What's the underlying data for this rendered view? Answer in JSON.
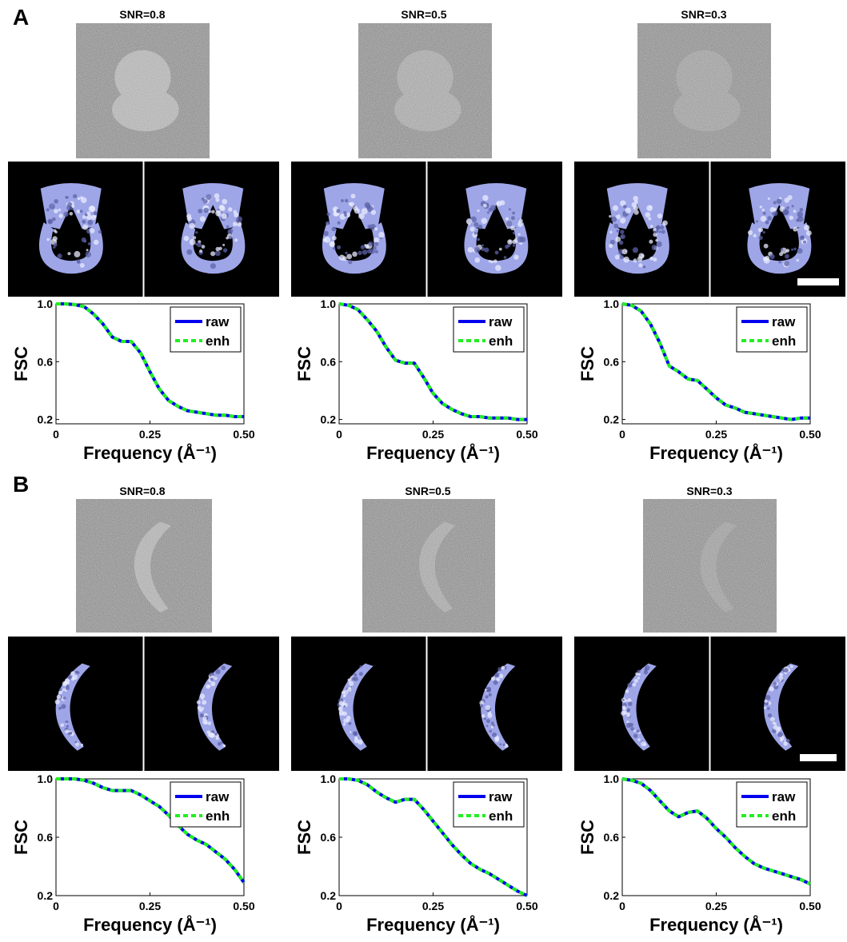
{
  "panels": [
    {
      "label": "A",
      "columns": [
        {
          "snr_title": "SNR=0.8"
        },
        {
          "snr_title": "SNR=0.5"
        },
        {
          "snr_title": "SNR=0.3"
        }
      ]
    },
    {
      "label": "B",
      "columns": [
        {
          "snr_title": "SNR=0.8"
        },
        {
          "snr_title": "SNR=0.5"
        },
        {
          "snr_title": "SNR=0.3"
        }
      ]
    }
  ],
  "colors": {
    "raw": "#0000ee",
    "enh": "#22ee22",
    "surface": "#9ea6e8",
    "noise_bg": "#8a8a8a",
    "recon_bg": "#000000"
  },
  "chart_data": [
    {
      "type": "line",
      "panel": "A",
      "title": "SNR=0.8",
      "xlabel": "Frequency (Å⁻¹)",
      "ylabel": "FSC",
      "xlim": [
        0,
        0.5
      ],
      "ylim": [
        0.17,
        1.0
      ],
      "xticks": [
        "0",
        "0.25",
        "0.50"
      ],
      "yticks": [
        "0.2",
        "0.6",
        "1.0"
      ],
      "legend": "top-right",
      "x": [
        0,
        0.025,
        0.05,
        0.075,
        0.1,
        0.125,
        0.15,
        0.175,
        0.2,
        0.225,
        0.25,
        0.275,
        0.3,
        0.325,
        0.35,
        0.375,
        0.4,
        0.425,
        0.45,
        0.475,
        0.5
      ],
      "series": [
        {
          "name": "raw",
          "values": [
            1.0,
            1.0,
            0.995,
            0.98,
            0.93,
            0.86,
            0.77,
            0.74,
            0.74,
            0.66,
            0.53,
            0.41,
            0.33,
            0.29,
            0.26,
            0.25,
            0.24,
            0.23,
            0.23,
            0.22,
            0.22
          ]
        },
        {
          "name": "enh",
          "values": [
            1.0,
            1.0,
            0.995,
            0.98,
            0.93,
            0.86,
            0.77,
            0.74,
            0.74,
            0.66,
            0.53,
            0.41,
            0.33,
            0.29,
            0.26,
            0.25,
            0.24,
            0.23,
            0.23,
            0.22,
            0.22
          ]
        }
      ]
    },
    {
      "type": "line",
      "panel": "A",
      "title": "SNR=0.5",
      "xlabel": "Frequency (Å⁻¹)",
      "ylabel": "FSC",
      "xlim": [
        0,
        0.5
      ],
      "ylim": [
        0.17,
        1.0
      ],
      "xticks": [
        "0",
        "0.25",
        "0.50"
      ],
      "yticks": [
        "0.2",
        "0.6",
        "1.0"
      ],
      "legend": "top-right",
      "x": [
        0,
        0.025,
        0.05,
        0.075,
        0.1,
        0.125,
        0.15,
        0.175,
        0.2,
        0.225,
        0.25,
        0.275,
        0.3,
        0.325,
        0.35,
        0.375,
        0.4,
        0.425,
        0.45,
        0.475,
        0.5
      ],
      "series": [
        {
          "name": "raw",
          "values": [
            1.0,
            0.99,
            0.96,
            0.89,
            0.81,
            0.7,
            0.61,
            0.59,
            0.59,
            0.49,
            0.38,
            0.31,
            0.27,
            0.24,
            0.22,
            0.22,
            0.21,
            0.21,
            0.21,
            0.2,
            0.2
          ]
        },
        {
          "name": "enh",
          "values": [
            1.0,
            0.99,
            0.96,
            0.89,
            0.81,
            0.7,
            0.61,
            0.59,
            0.59,
            0.49,
            0.38,
            0.31,
            0.27,
            0.24,
            0.22,
            0.22,
            0.21,
            0.21,
            0.21,
            0.2,
            0.2
          ]
        }
      ]
    },
    {
      "type": "line",
      "panel": "A",
      "title": "SNR=0.3",
      "xlabel": "Frequency (Å⁻¹)",
      "ylabel": "FSC",
      "xlim": [
        0,
        0.5
      ],
      "ylim": [
        0.17,
        1.0
      ],
      "xticks": [
        "0",
        "0.25",
        "0.50"
      ],
      "yticks": [
        "0.2",
        "0.6",
        "1.0"
      ],
      "legend": "top-right",
      "x": [
        0,
        0.025,
        0.05,
        0.075,
        0.1,
        0.125,
        0.15,
        0.175,
        0.2,
        0.225,
        0.25,
        0.275,
        0.3,
        0.325,
        0.35,
        0.375,
        0.4,
        0.425,
        0.45,
        0.475,
        0.5
      ],
      "series": [
        {
          "name": "raw",
          "values": [
            1.0,
            0.99,
            0.95,
            0.86,
            0.73,
            0.57,
            0.53,
            0.48,
            0.47,
            0.41,
            0.35,
            0.3,
            0.28,
            0.25,
            0.24,
            0.23,
            0.22,
            0.21,
            0.2,
            0.21,
            0.21
          ]
        },
        {
          "name": "enh",
          "values": [
            1.0,
            0.99,
            0.95,
            0.86,
            0.73,
            0.57,
            0.53,
            0.48,
            0.47,
            0.41,
            0.35,
            0.3,
            0.28,
            0.25,
            0.24,
            0.23,
            0.22,
            0.21,
            0.2,
            0.21,
            0.21
          ]
        }
      ]
    },
    {
      "type": "line",
      "panel": "B",
      "title": "SNR=0.8",
      "xlabel": "Frequency (Å⁻¹)",
      "ylabel": "FSC",
      "xlim": [
        0,
        0.5
      ],
      "ylim": [
        0.2,
        1.0
      ],
      "xticks": [
        "0",
        "0.25",
        "0.50"
      ],
      "yticks": [
        "0.2",
        "0.6",
        "1.0"
      ],
      "legend": "top-right",
      "x": [
        0,
        0.025,
        0.05,
        0.075,
        0.1,
        0.125,
        0.15,
        0.175,
        0.2,
        0.225,
        0.25,
        0.275,
        0.3,
        0.325,
        0.35,
        0.375,
        0.4,
        0.425,
        0.45,
        0.475,
        0.5
      ],
      "series": [
        {
          "name": "raw",
          "values": [
            1.0,
            1.0,
            1.0,
            0.99,
            0.97,
            0.94,
            0.92,
            0.92,
            0.92,
            0.89,
            0.85,
            0.81,
            0.75,
            0.68,
            0.62,
            0.58,
            0.55,
            0.5,
            0.45,
            0.38,
            0.29
          ]
        },
        {
          "name": "enh",
          "values": [
            1.0,
            1.0,
            1.0,
            0.99,
            0.97,
            0.94,
            0.92,
            0.92,
            0.92,
            0.89,
            0.85,
            0.81,
            0.75,
            0.68,
            0.62,
            0.58,
            0.55,
            0.5,
            0.45,
            0.38,
            0.29
          ]
        }
      ]
    },
    {
      "type": "line",
      "panel": "B",
      "title": "SNR=0.5",
      "xlabel": "Frequency (Å⁻¹)",
      "ylabel": "FSC",
      "xlim": [
        0,
        0.5
      ],
      "ylim": [
        0.2,
        1.0
      ],
      "xticks": [
        "0",
        "0.25",
        "0.50"
      ],
      "yticks": [
        "0.2",
        "0.6",
        "1.0"
      ],
      "legend": "top-right",
      "x": [
        0,
        0.025,
        0.05,
        0.075,
        0.1,
        0.125,
        0.15,
        0.175,
        0.2,
        0.225,
        0.25,
        0.275,
        0.3,
        0.325,
        0.35,
        0.375,
        0.4,
        0.425,
        0.45,
        0.475,
        0.5
      ],
      "series": [
        {
          "name": "raw",
          "values": [
            1.0,
            1.0,
            0.99,
            0.96,
            0.91,
            0.87,
            0.84,
            0.86,
            0.86,
            0.79,
            0.71,
            0.63,
            0.55,
            0.48,
            0.42,
            0.38,
            0.35,
            0.31,
            0.27,
            0.23,
            0.2
          ]
        },
        {
          "name": "enh",
          "values": [
            1.0,
            1.0,
            0.99,
            0.96,
            0.91,
            0.87,
            0.84,
            0.86,
            0.86,
            0.79,
            0.71,
            0.63,
            0.55,
            0.48,
            0.42,
            0.38,
            0.35,
            0.31,
            0.27,
            0.23,
            0.2
          ]
        }
      ]
    },
    {
      "type": "line",
      "panel": "B",
      "title": "SNR=0.3",
      "xlabel": "Frequency (Å⁻¹)",
      "ylabel": "FSC",
      "xlim": [
        0,
        0.5
      ],
      "ylim": [
        0.2,
        1.0
      ],
      "xticks": [
        "0",
        "0.25",
        "0.50"
      ],
      "yticks": [
        "0.2",
        "0.6",
        "1.0"
      ],
      "legend": "top-right",
      "x": [
        0,
        0.025,
        0.05,
        0.075,
        0.1,
        0.125,
        0.15,
        0.175,
        0.2,
        0.225,
        0.25,
        0.275,
        0.3,
        0.325,
        0.35,
        0.375,
        0.4,
        0.425,
        0.45,
        0.475,
        0.5
      ],
      "series": [
        {
          "name": "raw",
          "values": [
            1.0,
            0.99,
            0.97,
            0.92,
            0.85,
            0.78,
            0.74,
            0.77,
            0.78,
            0.73,
            0.66,
            0.6,
            0.53,
            0.47,
            0.42,
            0.39,
            0.37,
            0.35,
            0.33,
            0.31,
            0.28
          ]
        },
        {
          "name": "enh",
          "values": [
            1.0,
            0.99,
            0.97,
            0.92,
            0.85,
            0.78,
            0.74,
            0.77,
            0.78,
            0.73,
            0.66,
            0.6,
            0.53,
            0.47,
            0.42,
            0.39,
            0.37,
            0.35,
            0.33,
            0.31,
            0.28
          ]
        }
      ]
    }
  ]
}
